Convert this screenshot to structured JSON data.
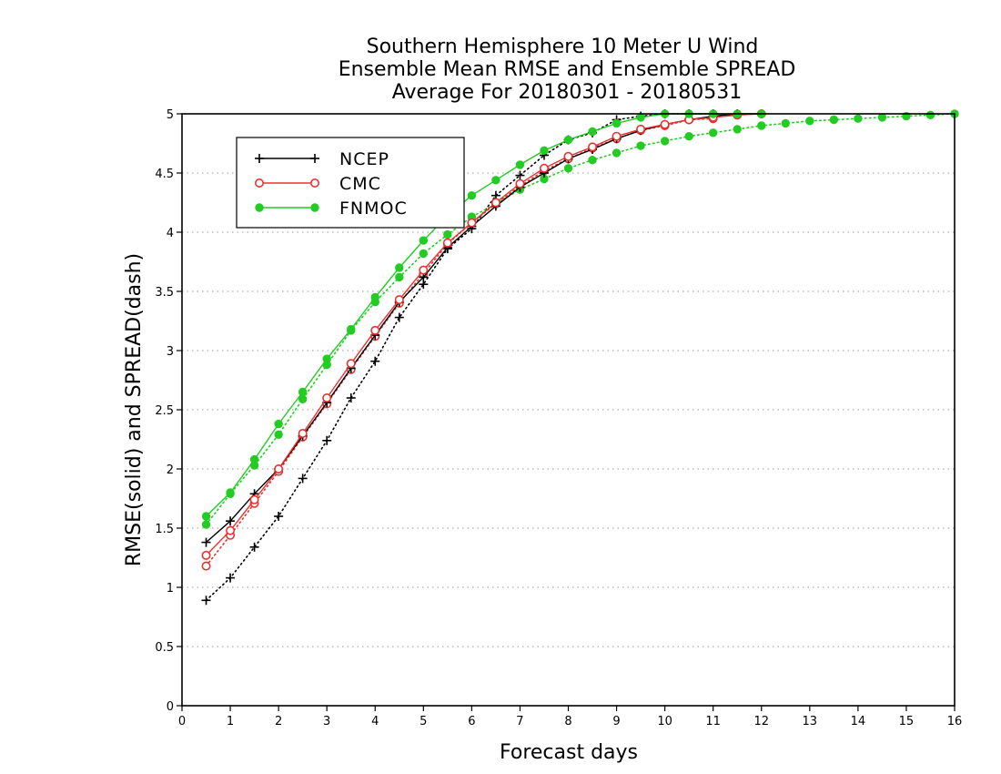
{
  "chart_data": {
    "type": "line",
    "title_lines": [
      "Southern Hemisphere 10 Meter U Wind",
      "Ensemble Mean RMSE and Ensemble SPREAD",
      "Average For 20180301 - 20180531"
    ],
    "xlabel": "Forecast days",
    "ylabel": "RMSE(solid) and SPREAD(dash)",
    "xlim": [
      0,
      16
    ],
    "ylim": [
      0,
      5
    ],
    "x_ticks": [
      "0",
      "1",
      "2",
      "3",
      "4",
      "5",
      "6",
      "7",
      "8",
      "9",
      "10",
      "11",
      "12",
      "13",
      "14",
      "15",
      "16"
    ],
    "y_ticks": [
      "0",
      "0.5",
      "1",
      "1.5",
      "2",
      "2.5",
      "3",
      "3.5",
      "4",
      "4.5",
      "5"
    ],
    "grid": "horizontal dotted",
    "legend_position": "top-left",
    "legend": [
      "NCEP",
      "CMC",
      "FNMOC"
    ],
    "series": [
      {
        "name": "NCEP",
        "kind": "RMSE",
        "style": "solid",
        "marker": "plus",
        "color": "#000000",
        "x": [
          0.5,
          1,
          1.5,
          2,
          2.5,
          3,
          3.5,
          4,
          4.5,
          5,
          5.5,
          6,
          6.5,
          7,
          7.5,
          8,
          8.5,
          9,
          9.5,
          10,
          10.5,
          11,
          11.5,
          12
        ],
        "y": [
          1.38,
          1.56,
          1.79,
          2.0,
          2.28,
          2.56,
          2.85,
          3.13,
          3.41,
          3.62,
          3.87,
          4.05,
          4.22,
          4.38,
          4.5,
          4.62,
          4.7,
          4.79,
          4.86,
          4.91,
          4.95,
          4.98,
          5.0,
          5.0
        ]
      },
      {
        "name": "NCEP",
        "kind": "SPREAD",
        "style": "dotted",
        "marker": "plus",
        "color": "#000000",
        "x": [
          0.5,
          1,
          1.5,
          2,
          2.5,
          3,
          3.5,
          4,
          4.5,
          5,
          5.5,
          6,
          6.5,
          7,
          7.5,
          8,
          8.5,
          9,
          9.5,
          10,
          10.5,
          11
        ],
        "y": [
          0.89,
          1.08,
          1.34,
          1.6,
          1.92,
          2.24,
          2.6,
          2.91,
          3.28,
          3.56,
          3.86,
          4.03,
          4.31,
          4.48,
          4.65,
          4.78,
          4.84,
          4.95,
          4.98,
          5.0,
          5.0,
          5.0
        ]
      },
      {
        "name": "CMC",
        "kind": "RMSE",
        "style": "solid",
        "marker": "open-circle",
        "color": "#e83232",
        "x": [
          0.5,
          1,
          1.5,
          2,
          2.5,
          3,
          3.5,
          4,
          4.5,
          5,
          5.5,
          6,
          6.5,
          7,
          7.5,
          8,
          8.5,
          9,
          9.5,
          10,
          10.5,
          11,
          11.5,
          12
        ],
        "y": [
          1.27,
          1.48,
          1.74,
          2.0,
          2.3,
          2.6,
          2.89,
          3.17,
          3.43,
          3.68,
          3.91,
          4.08,
          4.25,
          4.41,
          4.54,
          4.64,
          4.72,
          4.81,
          4.87,
          4.91,
          4.95,
          4.97,
          4.99,
          5.0
        ]
      },
      {
        "name": "CMC",
        "kind": "SPREAD",
        "style": "dotted",
        "marker": "open-circle",
        "color": "#e83232",
        "x": [
          0.5,
          1,
          1.5,
          2,
          2.5,
          3,
          3.5,
          4,
          4.5,
          5,
          5.5,
          6,
          6.5,
          7,
          7.5,
          8,
          8.5,
          9,
          9.5,
          10,
          10.5,
          11
        ],
        "y": [
          1.18,
          1.44,
          1.71,
          1.98,
          2.27,
          2.55,
          2.84,
          3.12,
          3.4,
          3.65,
          3.9,
          4.08,
          4.24,
          4.39,
          4.52,
          4.62,
          4.71,
          4.79,
          4.86,
          4.9,
          4.95,
          4.96
        ]
      },
      {
        "name": "FNMOC",
        "kind": "RMSE",
        "style": "solid",
        "marker": "filled-circle",
        "color": "#22cc22",
        "x": [
          0.5,
          1,
          1.5,
          2,
          2.5,
          3,
          3.5,
          4,
          4.5,
          5,
          5.5,
          6,
          6.5,
          7,
          7.5,
          8,
          8.5,
          9,
          9.5,
          10,
          10.5,
          11,
          11.5,
          12
        ],
        "y": [
          1.6,
          1.8,
          2.08,
          2.38,
          2.65,
          2.93,
          3.18,
          3.45,
          3.7,
          3.93,
          4.14,
          4.31,
          4.44,
          4.57,
          4.69,
          4.78,
          4.85,
          4.92,
          4.97,
          5.0,
          5.0,
          5.0,
          5.0,
          5.0
        ]
      },
      {
        "name": "FNMOC",
        "kind": "SPREAD",
        "style": "dotted",
        "marker": "filled-circle",
        "color": "#22cc22",
        "x": [
          0.5,
          1,
          1.5,
          2,
          2.5,
          3,
          3.5,
          4,
          4.5,
          5,
          5.5,
          6,
          6.5,
          7,
          7.5,
          8,
          8.5,
          9,
          9.5,
          10,
          10.5,
          11,
          11.5,
          12,
          12.5,
          13,
          13.5,
          14,
          14.5,
          15,
          15.5,
          16
        ],
        "y": [
          1.53,
          1.79,
          2.03,
          2.29,
          2.59,
          2.88,
          3.17,
          3.41,
          3.62,
          3.82,
          3.98,
          4.13,
          4.24,
          4.36,
          4.45,
          4.54,
          4.61,
          4.67,
          4.73,
          4.77,
          4.81,
          4.84,
          4.87,
          4.9,
          4.92,
          4.94,
          4.95,
          4.96,
          4.97,
          4.98,
          4.99,
          5.0
        ]
      }
    ]
  }
}
